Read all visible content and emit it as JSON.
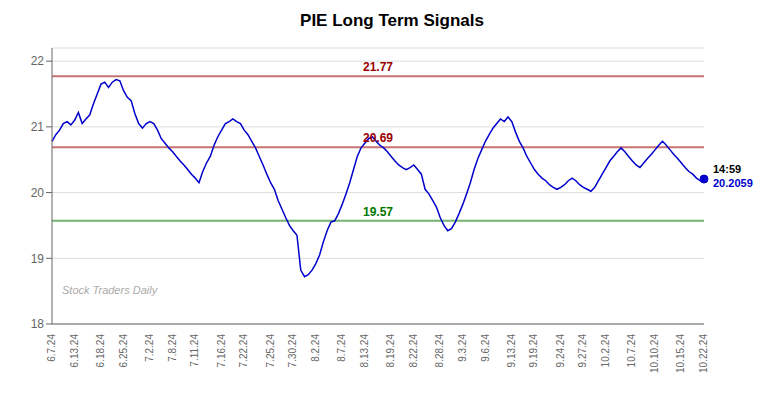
{
  "chart_data": {
    "type": "line",
    "title": "PIE Long Term Signals",
    "categories": [
      "6.7.24",
      null,
      null,
      null,
      null,
      null,
      "6.13.24",
      null,
      null,
      null,
      null,
      null,
      null,
      "6.18.24",
      null,
      null,
      null,
      null,
      null,
      "6.25.24",
      null,
      null,
      null,
      null,
      null,
      null,
      "7.2.24",
      null,
      null,
      null,
      null,
      null,
      "7.8.24",
      null,
      null,
      null,
      null,
      null,
      "7.11.24",
      null,
      null,
      null,
      null,
      null,
      null,
      "7.16.24",
      null,
      null,
      null,
      null,
      null,
      "7.22.24",
      null,
      null,
      null,
      null,
      null,
      null,
      "7.25.24",
      null,
      null,
      null,
      null,
      null,
      "7.30.24",
      null,
      null,
      null,
      null,
      null,
      "8.2.24",
      null,
      null,
      null,
      null,
      null,
      null,
      "8.7.24",
      null,
      null,
      null,
      null,
      null,
      "8.13.24",
      null,
      null,
      null,
      null,
      null,
      null,
      "8.19.24",
      null,
      null,
      null,
      null,
      null,
      "8.22.24",
      null,
      null,
      null,
      null,
      null,
      null,
      "8.28.24",
      null,
      null,
      null,
      null,
      null,
      "9.3.24",
      null,
      null,
      null,
      null,
      null,
      "9.6.24",
      null,
      null,
      null,
      null,
      null,
      null,
      "9.13.24",
      null,
      null,
      null,
      null,
      null,
      "9.19.24",
      null,
      null,
      null,
      null,
      null,
      null,
      "9.24.24",
      null,
      null,
      null,
      null,
      null,
      "9.27.24",
      null,
      null,
      null,
      null,
      null,
      "10.2.24",
      null,
      null,
      null,
      null,
      null,
      null,
      "10.7.24",
      null,
      null,
      null,
      null,
      null,
      "10.10.24",
      null,
      null,
      null,
      null,
      null,
      null,
      "10.15.24",
      null,
      null,
      null,
      null,
      null,
      "10.22.24"
    ],
    "values": [
      20.78,
      20.88,
      20.95,
      21.05,
      21.08,
      21.03,
      21.1,
      21.22,
      21.05,
      21.12,
      21.18,
      21.35,
      21.5,
      21.65,
      21.68,
      21.6,
      21.68,
      21.72,
      21.7,
      21.55,
      21.45,
      21.4,
      21.2,
      21.05,
      20.98,
      21.05,
      21.08,
      21.05,
      20.95,
      20.82,
      20.75,
      20.68,
      20.62,
      20.55,
      20.48,
      20.42,
      20.35,
      20.28,
      20.22,
      20.15,
      20.32,
      20.45,
      20.55,
      20.72,
      20.85,
      20.95,
      21.05,
      21.08,
      21.12,
      21.08,
      21.05,
      20.95,
      20.88,
      20.78,
      20.68,
      20.55,
      20.42,
      20.28,
      20.15,
      20.05,
      19.88,
      19.75,
      19.62,
      19.5,
      19.42,
      19.35,
      18.82,
      18.72,
      18.75,
      18.82,
      18.92,
      19.05,
      19.25,
      19.42,
      19.55,
      19.57,
      19.68,
      19.82,
      19.98,
      20.15,
      20.35,
      20.55,
      20.68,
      20.75,
      20.82,
      20.85,
      20.78,
      20.72,
      20.68,
      20.62,
      20.55,
      20.48,
      20.42,
      20.38,
      20.35,
      20.38,
      20.42,
      20.35,
      20.28,
      20.05,
      19.98,
      19.88,
      19.78,
      19.62,
      19.5,
      19.42,
      19.45,
      19.55,
      19.68,
      19.82,
      19.98,
      20.15,
      20.35,
      20.52,
      20.65,
      20.78,
      20.88,
      20.98,
      21.05,
      21.12,
      21.08,
      21.15,
      21.08,
      20.92,
      20.78,
      20.68,
      20.55,
      20.45,
      20.35,
      20.28,
      20.22,
      20.18,
      20.12,
      20.08,
      20.05,
      20.08,
      20.12,
      20.18,
      20.22,
      20.18,
      20.12,
      20.08,
      20.05,
      20.02,
      20.08,
      20.18,
      20.28,
      20.38,
      20.48,
      20.55,
      20.62,
      20.68,
      20.62,
      20.55,
      20.48,
      20.42,
      20.38,
      20.45,
      20.52,
      20.58,
      20.65,
      20.72,
      20.78,
      20.72,
      20.65,
      20.58,
      20.52,
      20.45,
      20.38,
      20.32,
      20.28,
      20.22,
      20.18,
      20.2059
    ],
    "color": "#0000cc",
    "ylim": [
      18,
      22.2
    ],
    "yticks": [
      18,
      19,
      20,
      21,
      22
    ],
    "grid": true,
    "hlines": [
      {
        "y": 21.77,
        "label": "21.77",
        "color": "#990000"
      },
      {
        "y": 20.69,
        "label": "20.69",
        "color": "#990000"
      },
      {
        "y": 19.57,
        "label": "19.57",
        "color": "#007700"
      }
    ],
    "last_point": {
      "label": "14:59",
      "value_label": "20.2059"
    },
    "watermark": "Stock Traders Daily"
  }
}
